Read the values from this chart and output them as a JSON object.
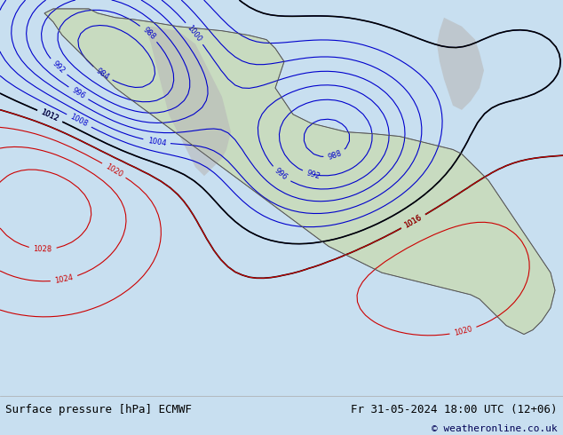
{
  "title_left": "Surface pressure [hPa] ECMWF",
  "title_right": "Fr 31-05-2024 18:00 UTC (12+06)",
  "copyright": "© weatheronline.co.uk",
  "bg_color": "#e8f4f8",
  "map_bg": "#d0e8d0",
  "ocean_color": "#c8e0f0",
  "land_color": "#d4e8c8",
  "footer_bg": "#ffffff",
  "footer_text_color": "#000000",
  "copyright_color": "#000055",
  "fig_width": 6.34,
  "fig_height": 4.9,
  "dpi": 100
}
